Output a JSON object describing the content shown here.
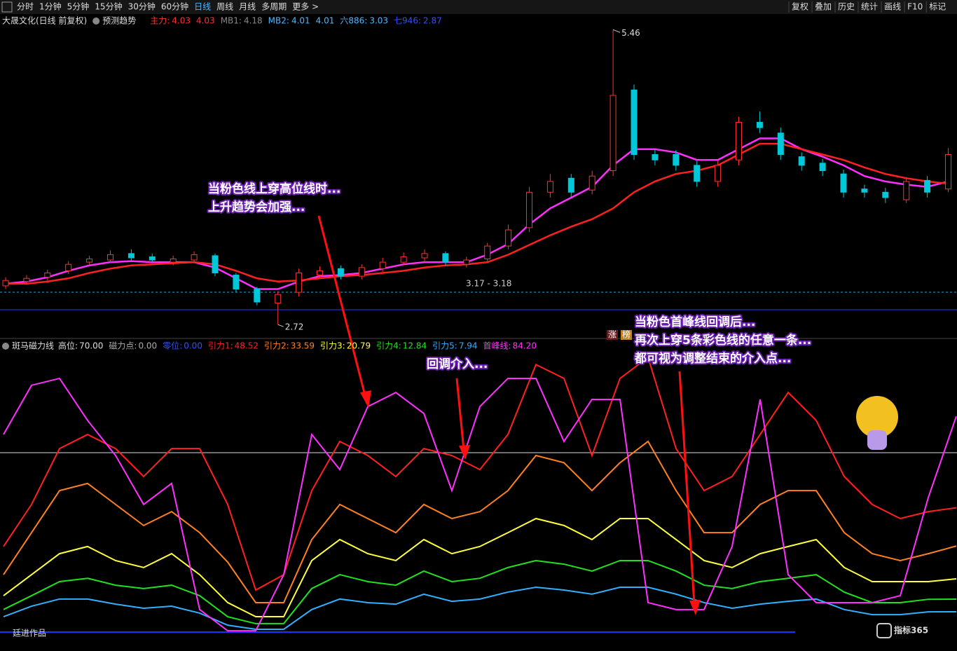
{
  "toolbar": {
    "tabs": [
      "分时",
      "1分钟",
      "5分钟",
      "15分钟",
      "30分钟",
      "60分钟",
      "日线",
      "周线",
      "月线",
      "多周期",
      "更多 >"
    ],
    "active": 6,
    "tools": [
      "复权",
      "叠加",
      "历史",
      "统计",
      "画线",
      "F10",
      "标记"
    ]
  },
  "upper": {
    "stock": "大晟文化(日线 前复权)",
    "indicator": "预测趋势",
    "legend": [
      {
        "label": "主力:",
        "value": "4.03",
        "extra": "4.03",
        "color": "#ff3030"
      },
      {
        "label": "MB1:",
        "value": "4.18",
        "color": "#888888"
      },
      {
        "label": "MB2:",
        "value": "4.01",
        "extra": "4.01",
        "color": "#4db8ff"
      },
      {
        "label": "六886:",
        "value": "3.03",
        "color": "#4db8ff"
      },
      {
        "label": "七946:",
        "value": "2.87",
        "color": "#3050ff"
      }
    ],
    "candles": {
      "open": [
        3.08,
        3.12,
        3.16,
        3.22,
        3.3,
        3.32,
        3.38,
        3.35,
        3.3,
        3.32,
        3.36,
        3.18,
        3.05,
        2.92,
        3.02,
        3.18,
        3.24,
        3.17,
        3.24,
        3.3,
        3.34,
        3.38,
        3.28,
        3.33,
        3.45,
        3.62,
        3.95,
        4.08,
        3.97,
        4.15,
        4.9,
        4.3,
        4.3,
        4.2,
        4.05,
        4.25,
        4.6,
        4.5,
        4.28,
        4.22,
        4.12,
        3.98,
        3.95,
        3.88,
        4.06,
        3.98
      ],
      "close": [
        3.13,
        3.15,
        3.2,
        3.28,
        3.33,
        3.37,
        3.34,
        3.32,
        3.33,
        3.37,
        3.2,
        3.05,
        2.93,
        3.0,
        3.2,
        3.22,
        3.17,
        3.25,
        3.3,
        3.35,
        3.38,
        3.3,
        3.32,
        3.45,
        3.6,
        3.95,
        4.05,
        3.95,
        4.1,
        4.85,
        4.3,
        4.25,
        4.2,
        4.05,
        4.2,
        4.6,
        4.55,
        4.3,
        4.2,
        4.15,
        3.95,
        3.95,
        3.9,
        4.05,
        3.95,
        4.3
      ],
      "high": [
        3.16,
        3.18,
        3.23,
        3.31,
        3.36,
        3.41,
        3.42,
        3.38,
        3.36,
        3.4,
        3.38,
        3.2,
        3.07,
        3.03,
        3.24,
        3.26,
        3.27,
        3.28,
        3.34,
        3.39,
        3.42,
        3.4,
        3.35,
        3.48,
        3.65,
        4.0,
        4.12,
        4.12,
        4.15,
        5.46,
        4.95,
        4.35,
        4.34,
        4.24,
        4.24,
        4.65,
        4.7,
        4.55,
        4.32,
        4.26,
        4.16,
        4.02,
        3.99,
        4.09,
        4.1,
        4.36
      ],
      "low": [
        3.05,
        3.09,
        3.13,
        3.19,
        3.27,
        3.29,
        3.31,
        3.29,
        3.27,
        3.29,
        3.17,
        3.02,
        2.9,
        2.72,
        2.98,
        3.15,
        3.14,
        3.14,
        3.21,
        3.27,
        3.31,
        3.27,
        3.25,
        3.3,
        3.42,
        3.58,
        3.9,
        3.9,
        3.93,
        4.1,
        4.25,
        4.2,
        4.15,
        4.0,
        4.0,
        4.2,
        4.5,
        4.25,
        4.15,
        4.1,
        3.9,
        3.9,
        3.85,
        3.85,
        3.9,
        3.95
      ]
    },
    "ma": [
      {
        "color": "#ff30ff",
        "values": [
          3.1,
          3.12,
          3.16,
          3.22,
          3.27,
          3.3,
          3.31,
          3.3,
          3.3,
          3.3,
          3.25,
          3.15,
          3.05,
          3.05,
          3.12,
          3.17,
          3.18,
          3.2,
          3.24,
          3.28,
          3.3,
          3.3,
          3.3,
          3.37,
          3.47,
          3.65,
          3.8,
          3.9,
          4.0,
          4.2,
          4.35,
          4.35,
          4.32,
          4.25,
          4.25,
          4.35,
          4.45,
          4.45,
          4.35,
          4.28,
          4.2,
          4.1,
          4.05,
          4.02,
          4.0,
          4.05
        ]
      },
      {
        "color": "#ff2020",
        "values": [
          3.1,
          3.1,
          3.12,
          3.15,
          3.2,
          3.24,
          3.27,
          3.28,
          3.29,
          3.3,
          3.28,
          3.22,
          3.15,
          3.12,
          3.13,
          3.15,
          3.17,
          3.18,
          3.2,
          3.22,
          3.25,
          3.27,
          3.28,
          3.3,
          3.37,
          3.46,
          3.55,
          3.63,
          3.7,
          3.8,
          3.95,
          4.05,
          4.12,
          4.15,
          4.2,
          4.3,
          4.4,
          4.4,
          4.35,
          4.3,
          4.25,
          4.18,
          4.12,
          4.08,
          4.05,
          4.03
        ]
      }
    ],
    "labels": {
      "high": "5.46",
      "low": "2.72",
      "range": "3.17 - 3.18"
    }
  },
  "lower": {
    "name": "斑马磁力线",
    "legend": [
      {
        "label": "高位:",
        "value": "70.00",
        "color": "#dddddd"
      },
      {
        "label": "磁力点:",
        "value": "0.00",
        "color": "#aaaaaa"
      },
      {
        "label": "零位:",
        "value": "0.00",
        "color": "#3050ff"
      }
    ],
    "lines": [
      {
        "label": "引力1:",
        "value": "48.52",
        "color": "#ff2020",
        "values": [
          33.4,
          49.8,
          71.6,
          77.1,
          71.6,
          60.7,
          71.6,
          71.6,
          49.8,
          16.4,
          22.4,
          55.2,
          74.4,
          68.9,
          60.7,
          71.6,
          68.9,
          63.4,
          77.1,
          104.4,
          99,
          68.9,
          99,
          107.2,
          71.6,
          55.2,
          60.7,
          77.1,
          93.5,
          82.6,
          60.7,
          49.8,
          44.3,
          47,
          48.52
        ]
      },
      {
        "label": "引力2:",
        "value": "33.59",
        "color": "#ff8020",
        "values": [
          22.4,
          38.8,
          55.2,
          58,
          49.8,
          41.6,
          47,
          38.8,
          27.3,
          11.5,
          11.5,
          36.1,
          49.8,
          44.3,
          38.8,
          49.8,
          44.3,
          47,
          55.2,
          68.9,
          66.1,
          55.2,
          66.1,
          74.4,
          55.2,
          38.8,
          38.8,
          49.8,
          55.2,
          55.2,
          38.8,
          30.6,
          27.9,
          30.6,
          33.59
        ]
      },
      {
        "label": "引力3:",
        "value": "20.79",
        "color": "#ffff40",
        "values": [
          14.2,
          22.4,
          30.6,
          33.4,
          27.9,
          25.2,
          30.6,
          22.4,
          11.5,
          6,
          6,
          27.9,
          36.1,
          30.6,
          27.9,
          36.1,
          30.6,
          33.4,
          38.8,
          44.3,
          41.6,
          36.1,
          44.3,
          44.3,
          36.1,
          27.9,
          25.2,
          30.6,
          33.4,
          36.1,
          25.2,
          19.7,
          19.7,
          19.7,
          20.79
        ]
      },
      {
        "label": "引力4:",
        "value": "12.84",
        "color": "#20e020",
        "values": [
          8.8,
          14.2,
          19.7,
          21,
          18.3,
          17,
          18.3,
          14.2,
          6,
          3.3,
          3.3,
          17,
          22.4,
          19.7,
          18.3,
          23.8,
          19.7,
          21,
          25.2,
          27.9,
          26.5,
          23.8,
          27.9,
          27.9,
          23.8,
          18.3,
          17,
          19.7,
          21,
          22.4,
          15.6,
          11.5,
          11.5,
          12.8,
          12.84
        ]
      },
      {
        "label": "引力5:",
        "value": "7.94",
        "color": "#30b0ff",
        "values": [
          6,
          10.1,
          12.9,
          12.9,
          10.9,
          9.3,
          10.1,
          7.4,
          2.7,
          1.1,
          1.1,
          8.8,
          12.9,
          11.5,
          10.9,
          14.8,
          12,
          12.9,
          15.6,
          17.5,
          16.4,
          14.8,
          17.5,
          17.5,
          14.8,
          11.5,
          9.3,
          10.9,
          12,
          12.9,
          8.8,
          6.8,
          6.8,
          7.9,
          7.94
        ]
      },
      {
        "label": "首峰线:",
        "value": "84.20",
        "color": "#ff30ff",
        "values": [
          77.1,
          96.3,
          99,
          82.6,
          68.9,
          49.8,
          58,
          8.8,
          0.5,
          0.5,
          22.4,
          77.1,
          63.4,
          88,
          93.5,
          85.3,
          55.2,
          88,
          99,
          99,
          74.4,
          90.8,
          90.8,
          11.5,
          8.8,
          8.8,
          33.4,
          90.8,
          22.4,
          11.5,
          11.5,
          11.5,
          14.2,
          52.5,
          84.2
        ]
      }
    ]
  },
  "annotations": [
    [
      "当粉色线上穿高位线时...",
      "上升趋势会加强..."
    ],
    [
      "回调介入..."
    ],
    [
      "当粉色首峰线回调后...",
      "再次上穿5条彩色线的任意一条...",
      "都可视为调整结束的介入点..."
    ]
  ],
  "badges": [
    "涨",
    "榜"
  ],
  "author": "廷进作品",
  "watermark": "指标365"
}
